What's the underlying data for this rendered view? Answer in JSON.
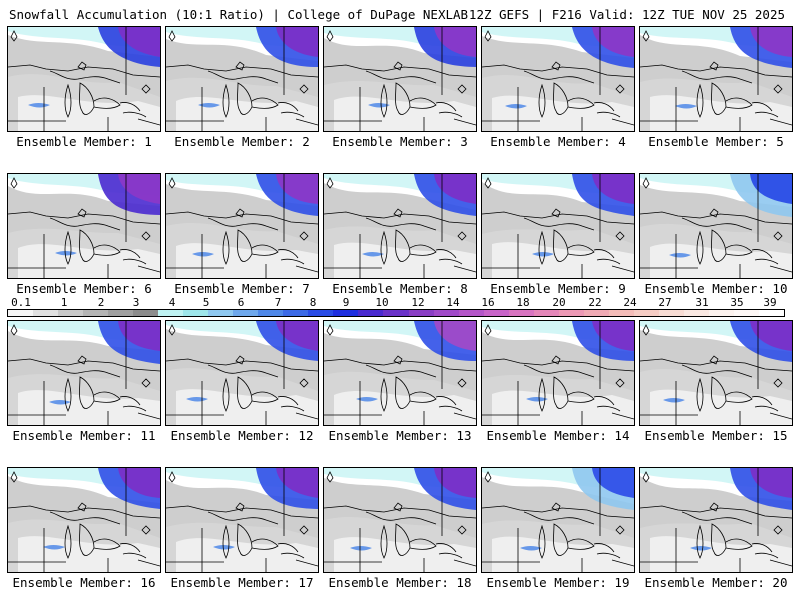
{
  "header": {
    "left_title": "Snowfall Accumulation (10:1 Ratio) | College of DuPage NEXLAB",
    "right_title": "12Z GEFS | F216 Valid: 12Z TUE NOV 25 2025"
  },
  "panels": [
    {
      "label": "Ensemble Member: 1"
    },
    {
      "label": "Ensemble Member: 2"
    },
    {
      "label": "Ensemble Member: 3"
    },
    {
      "label": "Ensemble Member: 4"
    },
    {
      "label": "Ensemble Member: 5"
    },
    {
      "label": "Ensemble Member: 6"
    },
    {
      "label": "Ensemble Member: 7"
    },
    {
      "label": "Ensemble Member: 8"
    },
    {
      "label": "Ensemble Member: 9"
    },
    {
      "label": "Ensemble Member: 10"
    },
    {
      "label": "Ensemble Member: 11"
    },
    {
      "label": "Ensemble Member: 12"
    },
    {
      "label": "Ensemble Member: 13"
    },
    {
      "label": "Ensemble Member: 14"
    },
    {
      "label": "Ensemble Member: 15"
    },
    {
      "label": "Ensemble Member: 16"
    },
    {
      "label": "Ensemble Member: 17"
    },
    {
      "label": "Ensemble Member: 18"
    },
    {
      "label": "Ensemble Member: 19"
    },
    {
      "label": "Ensemble Member: 20"
    }
  ],
  "colorbar": {
    "labels": [
      "0.1",
      "1",
      "2",
      "3",
      "4",
      "5",
      "6",
      "7",
      "8",
      "9",
      "10",
      "12",
      "14",
      "16",
      "18",
      "20",
      "22",
      "24",
      "27",
      "31",
      "35",
      "39"
    ],
    "colors": [
      "#f5f5f5",
      "#e0e0e0",
      "#c8c8c8",
      "#b4b4b4",
      "#a0a0a0",
      "#8c8c8c",
      "#bff2f2",
      "#9ee6ea",
      "#8fc8f0",
      "#6fa8ec",
      "#4f88e8",
      "#3c6ae6",
      "#2a4ce6",
      "#1f2fe0",
      "#4a2ad0",
      "#6a32c8",
      "#8a3ec4",
      "#a04ac8",
      "#b456c8",
      "#c864c8",
      "#d874c0",
      "#e486b8",
      "#ec98b4",
      "#f0aab4",
      "#f4bcb8",
      "#f6ccc4",
      "#f8dcd4",
      "#fae8e2",
      "#fcf2ee",
      "#fef8f6",
      "#ffffff"
    ]
  }
}
